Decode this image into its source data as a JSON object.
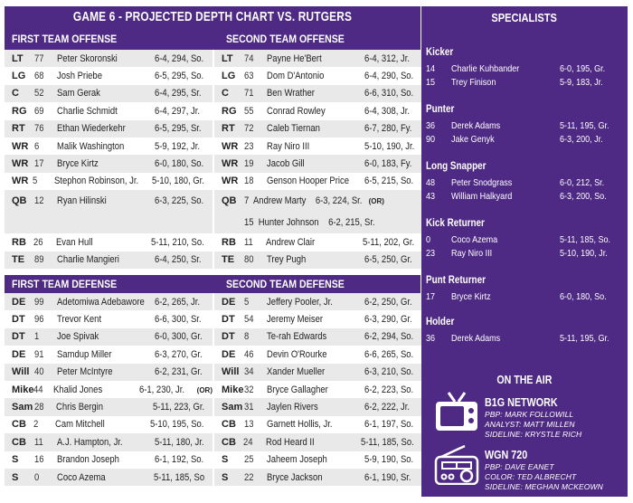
{
  "title": "GAME 6 - PROJECTED DEPTH CHART VS. RUTGERS",
  "colors": {
    "primary_purple": "#4e2a84",
    "row_shade": "#e9e9ea",
    "text": "#222222",
    "white": "#ffffff"
  },
  "offense": {
    "first": {
      "header": "FIRST TEAM OFFENSE",
      "rows": [
        {
          "pos": "LT",
          "num": "77",
          "name": "Peter Skoronski",
          "info": "6-4, 294, So."
        },
        {
          "pos": "LG",
          "num": "68",
          "name": "Josh Priebe",
          "info": "6-5, 295, So."
        },
        {
          "pos": "C",
          "num": "52",
          "name": "Sam Gerak",
          "info": "6-4, 295, Sr."
        },
        {
          "pos": "RG",
          "num": "69",
          "name": "Charlie Schmidt",
          "info": "6-4, 297, Jr."
        },
        {
          "pos": "RT",
          "num": "76",
          "name": "Ethan Wiederkehr",
          "info": "6-5, 295, Sr."
        },
        {
          "pos": "WR",
          "num": "6",
          "name": "Malik Washington",
          "info": "5-9, 192, Jr."
        },
        {
          "pos": "WR",
          "num": "17",
          "name": "Bryce Kirtz",
          "info": "6-0, 180, So."
        },
        {
          "pos": "WR",
          "num": "5",
          "name": "Stephon Robinson, Jr.",
          "info": "5-10, 180, Gr."
        },
        {
          "pos": "QB",
          "num": "12",
          "name": "Ryan Hilinski",
          "info": "6-3, 225, So."
        },
        {
          "pos": "RB",
          "num": "26",
          "name": "Evan Hull",
          "info": "5-11, 210, So."
        },
        {
          "pos": "TE",
          "num": "89",
          "name": "Charlie Mangieri",
          "info": "6-4, 250, Sr."
        }
      ]
    },
    "second": {
      "header": "SECOND TEAM OFFENSE",
      "rows": [
        {
          "pos": "LT",
          "num": "74",
          "name": "Payne He'Bert",
          "info": "6-4, 312, Jr."
        },
        {
          "pos": "LG",
          "num": "63",
          "name": "Dom D'Antonio",
          "info": "6-4, 290, So."
        },
        {
          "pos": "C",
          "num": "71",
          "name": "Ben Wrather",
          "info": "6-6, 310, So."
        },
        {
          "pos": "RG",
          "num": "55",
          "name": "Conrad Rowley",
          "info": "6-4, 308, Jr."
        },
        {
          "pos": "RT",
          "num": "72",
          "name": "Caleb Tiernan",
          "info": "6-7, 280, Fy."
        },
        {
          "pos": "WR",
          "num": "23",
          "name": "Ray Niro III",
          "info": "5-10, 190, Jr."
        },
        {
          "pos": "WR",
          "num": "19",
          "name": "Jacob Gill",
          "info": "6-0, 183, Fy."
        },
        {
          "pos": "WR",
          "num": "18",
          "name": "Genson Hooper Price",
          "info": "6-5, 215, So."
        },
        {
          "pos": "RB",
          "num": "11",
          "name": "Andrew Clair",
          "info": "5-11, 202, Gr."
        },
        {
          "pos": "TE",
          "num": "80",
          "name": "Trey Pugh",
          "info": "6-5, 250, Gr."
        }
      ],
      "qb": {
        "pos": "QB",
        "line1": "7  Andrew Marty    6-3, 224, Sr.",
        "line1_or": "(OR)",
        "line2": "15  Hunter Johnson    6-2, 215, Sr."
      }
    }
  },
  "defense": {
    "first": {
      "header": "FIRST TEAM DEFENSE",
      "rows": [
        {
          "pos": "DE",
          "num": "99",
          "name": "Adetomiwa Adebawore",
          "info": "6-2, 265, Jr.",
          "or": ""
        },
        {
          "pos": "DT",
          "num": "96",
          "name": "Trevor Kent",
          "info": "6-6, 300, Sr.",
          "or": ""
        },
        {
          "pos": "DT",
          "num": "1",
          "name": "Joe Spivak",
          "info": "6-0, 300, Gr.",
          "or": ""
        },
        {
          "pos": "DE",
          "num": "91",
          "name": "Samdup Miller",
          "info": "6-3, 270, Gr.",
          "or": ""
        },
        {
          "pos": "Will",
          "num": "40",
          "name": "Peter McIntyre",
          "info": "6-2, 231, Gr.",
          "or": ""
        },
        {
          "pos": "Mike",
          "num": "44",
          "name": "Khalid Jones",
          "info": "6-1, 230, Jr.",
          "or": "(OR)"
        },
        {
          "pos": "Sam",
          "num": "28",
          "name": "Chris Bergin",
          "info": "5-11, 223, Gr.",
          "or": ""
        },
        {
          "pos": "CB",
          "num": "2",
          "name": "Cam Mitchell",
          "info": "5-10, 195, So.",
          "or": ""
        },
        {
          "pos": "CB",
          "num": "11",
          "name": "A.J. Hampton, Jr.",
          "info": "5-11, 180, Jr.",
          "or": ""
        },
        {
          "pos": "S",
          "num": "16",
          "name": "Brandon Joseph",
          "info": "6-1, 192, So.",
          "or": ""
        },
        {
          "pos": "S",
          "num": "0",
          "name": "Coco Azema",
          "info": "5-11, 185, So",
          "or": ""
        }
      ]
    },
    "second": {
      "header": "SECOND TEAM DEFENSE",
      "rows": [
        {
          "pos": "DE",
          "num": "5",
          "name": "Jeffery Pooler, Jr.",
          "info": "6-2, 250, Gr."
        },
        {
          "pos": "DT",
          "num": "54",
          "name": "Jeremy Meiser",
          "info": "6-3, 290, Gr."
        },
        {
          "pos": "DT",
          "num": "8",
          "name": "Te-rah Edwards",
          "info": "6-2, 294, So."
        },
        {
          "pos": "DE",
          "num": "46",
          "name": "Devin O'Rourke",
          "info": "6-6, 265, So."
        },
        {
          "pos": "Will",
          "num": "34",
          "name": "Xander Mueller",
          "info": "6-3, 210, So."
        },
        {
          "pos": "Mike",
          "num": "32",
          "name": "Bryce Gallagher",
          "info": "6-2, 223, So."
        },
        {
          "pos": "Sam",
          "num": "31",
          "name": "Jaylen Rivers",
          "info": "6-2, 222, Jr."
        },
        {
          "pos": "CB",
          "num": "13",
          "name": "Garnett Hollis, Jr.",
          "info": "6-1, 197, So."
        },
        {
          "pos": "CB",
          "num": "24",
          "name": "Rod Heard II",
          "info": "5-11, 185, So."
        },
        {
          "pos": "S",
          "num": "25",
          "name": "Jaheem Joseph",
          "info": "5-9, 190, So."
        },
        {
          "pos": "S",
          "num": "22",
          "name": "Bryce Jackson",
          "info": "6-1, 190, Sr."
        }
      ]
    }
  },
  "specialists": {
    "title": "SPECIALISTS",
    "groups": [
      {
        "label": "Kicker",
        "players": [
          {
            "num": "14",
            "name": "Charlie Kuhbander",
            "info": "6-0, 195, Gr."
          },
          {
            "num": "15",
            "name": "Trey Finison",
            "info": "5-9, 183, Jr."
          }
        ]
      },
      {
        "label": "Punter",
        "players": [
          {
            "num": "36",
            "name": "Derek Adams",
            "info": "5-11, 195, Gr."
          },
          {
            "num": "90",
            "name": "Jake Genyk",
            "info": "6-3, 200, Jr."
          }
        ]
      },
      {
        "label": "Long Snapper",
        "players": [
          {
            "num": "48",
            "name": "Peter Snodgrass",
            "info": "6-0, 212, Sr."
          },
          {
            "num": "43",
            "name": "William Halkyard",
            "info": "6-3, 200, So."
          }
        ]
      },
      {
        "label": "Kick Returner",
        "players": [
          {
            "num": "0",
            "name": "Coco Azema",
            "info": "5-11, 185, So."
          },
          {
            "num": "23",
            "name": "Ray Niro III",
            "info": "5-10, 190, Jr."
          }
        ]
      },
      {
        "label": "Punt Returner",
        "players": [
          {
            "num": "17",
            "name": "Bryce Kirtz",
            "info": "6-0, 180, So."
          }
        ]
      },
      {
        "label": "Holder",
        "players": [
          {
            "num": "36",
            "name": "Derek Adams",
            "info": "5-11, 195, Gr."
          }
        ]
      }
    ]
  },
  "on_the_air": {
    "title": "ON THE AIR",
    "networks": [
      {
        "name": "B1G NETWORK",
        "icon": "tv-icon",
        "lines": [
          "PBP: Mark Followill",
          "Analyst: Matt Millen",
          "Sideline: Krystle Rich"
        ]
      },
      {
        "name": "WGN 720",
        "icon": "radio-icon",
        "lines": [
          "PBP: Dave Eanet",
          "Color: Ted Albrecht",
          "Sideline: Meghan Mckeown"
        ]
      }
    ]
  }
}
